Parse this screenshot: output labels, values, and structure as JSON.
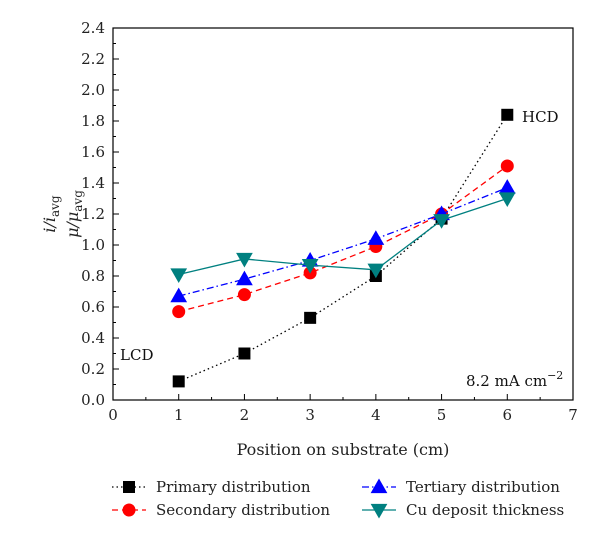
{
  "chart_data": {
    "type": "line",
    "xlabel": "Position on substrate (cm)",
    "ylabel_line1": {
      "main": "i/i",
      "sub": "avg"
    },
    "ylabel_line2": {
      "main": "μ/μ",
      "sub": "avg"
    },
    "xlim": [
      0,
      7
    ],
    "ylim": [
      0.0,
      2.4
    ],
    "x_ticks": [
      "0",
      "1",
      "2",
      "3",
      "4",
      "5",
      "6",
      "7"
    ],
    "y_ticks": [
      "0.0",
      "0.2",
      "0.4",
      "0.6",
      "0.8",
      "1.0",
      "1.2",
      "1.4",
      "1.6",
      "1.8",
      "2.0",
      "2.2",
      "2.4"
    ],
    "grid": false,
    "legend_position": "bottom",
    "annotations": {
      "lcd": "LCD",
      "hcd": "HCD",
      "current_density": {
        "main": "8.2 mA cm",
        "sup": "−2"
      }
    },
    "series": [
      {
        "name": "Primary distribution",
        "color": "#000000",
        "marker": "square",
        "line": "dotted",
        "x": [
          1,
          2,
          3,
          4,
          5,
          6
        ],
        "y": [
          0.12,
          0.3,
          0.53,
          0.8,
          1.17,
          1.84
        ]
      },
      {
        "name": "Secondary distribution",
        "color": "#ff0000",
        "marker": "circle",
        "line": "dashed",
        "x": [
          1,
          2,
          3,
          4,
          5,
          6
        ],
        "y": [
          0.57,
          0.68,
          0.82,
          0.99,
          1.2,
          1.51
        ]
      },
      {
        "name": "Tertiary distribution",
        "color": "#0000ff",
        "marker": "triangle-up",
        "line": "dashdot",
        "x": [
          1,
          2,
          3,
          4,
          5,
          6
        ],
        "y": [
          0.67,
          0.78,
          0.9,
          1.04,
          1.2,
          1.37
        ]
      },
      {
        "name": "Cu deposit thickness",
        "color": "#008080",
        "marker": "triangle-down",
        "line": "solid",
        "x": [
          1,
          2,
          3,
          4,
          5,
          6
        ],
        "y": [
          0.81,
          0.91,
          0.87,
          0.84,
          1.16,
          1.3
        ]
      }
    ]
  }
}
